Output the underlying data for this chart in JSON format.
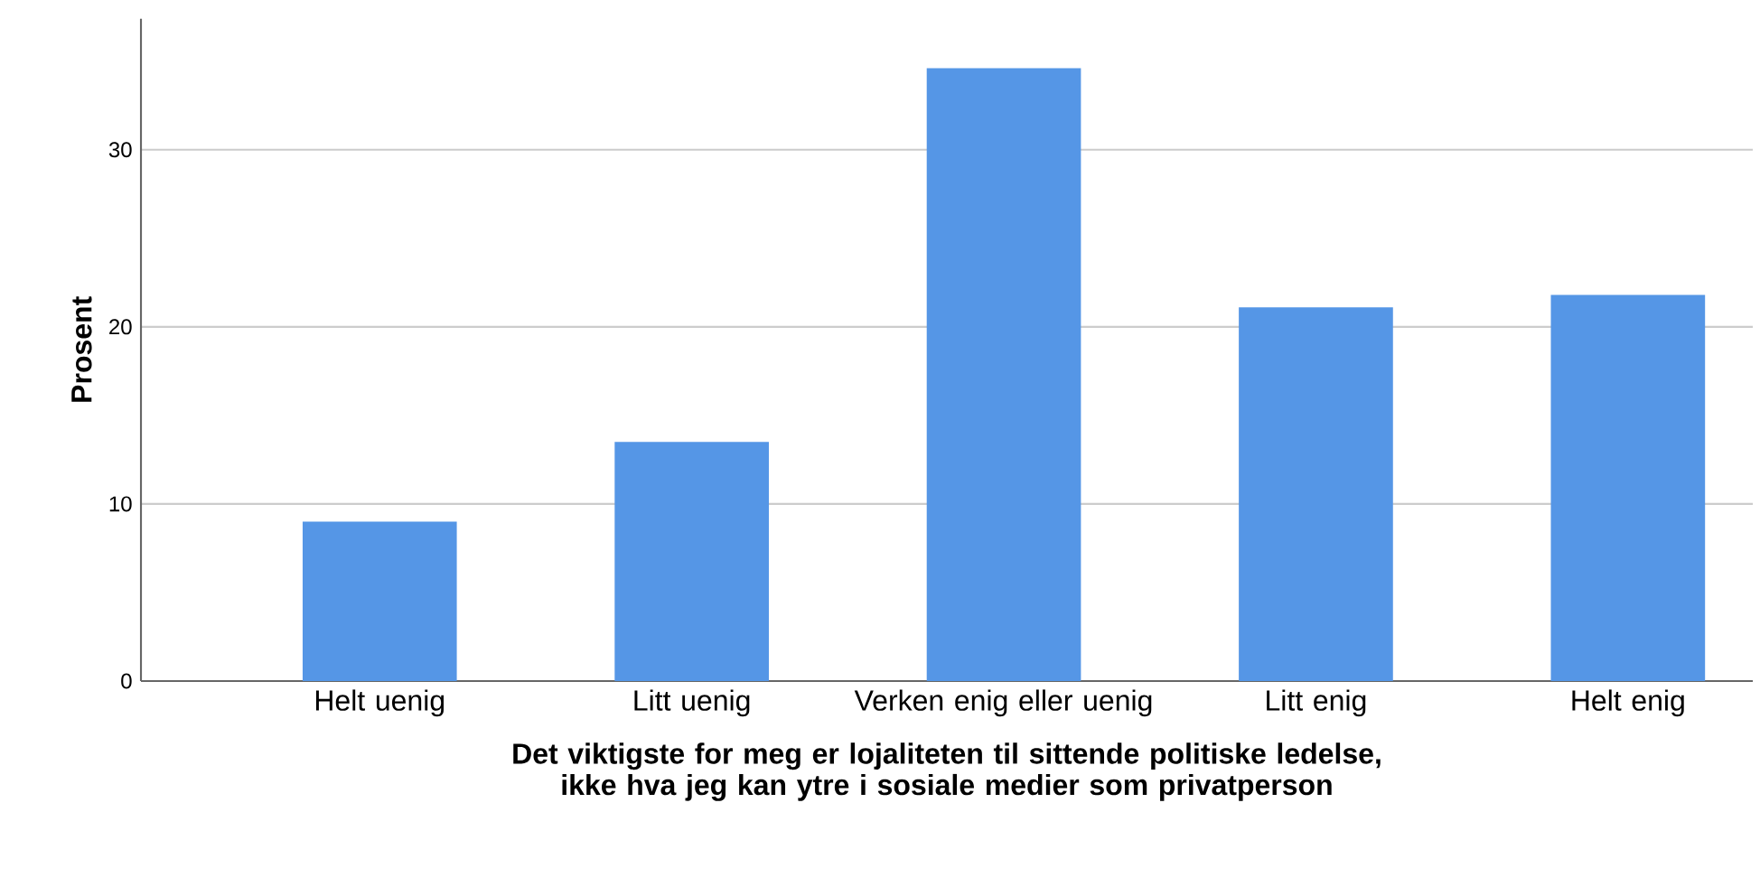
{
  "chart_data": {
    "type": "bar",
    "ylabel": "Prosent",
    "xlabel": "Det viktigste for meg er lojaliteten til sittende politiske ledelse, ikke hva jeg kan ytre i sosiale medier som privatperson",
    "categories": [
      "Helt uenig",
      "Litt uenig",
      "Verken enig eller uenig",
      "Litt enig",
      "Helt enig"
    ],
    "values": [
      9.0,
      13.5,
      34.6,
      21.1,
      21.8
    ],
    "color": "#5596e6",
    "ylim": [
      0,
      37.4
    ],
    "yticks": [
      0,
      10,
      20,
      30
    ],
    "grid": "y"
  }
}
